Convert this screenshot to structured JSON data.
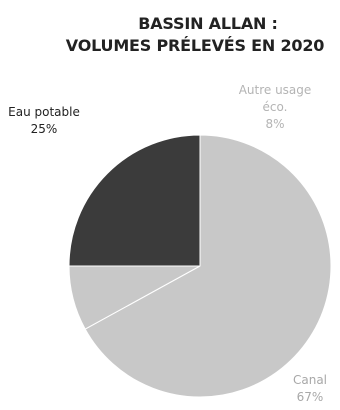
{
  "chart_data": {
    "type": "pie",
    "title_lines": [
      "BASSIN ALLAN :",
      "VOLUMES PRÉLEVÉS EN 2020"
    ],
    "slices": [
      {
        "label": "Eau potable",
        "value": 25,
        "value_label": "25%",
        "color": "#3b3b3b",
        "label_color": "#222222"
      },
      {
        "label": "Canal",
        "value": 67,
        "value_label": "67%",
        "color": "#c8c8c8",
        "label_color": "#a8a8a8"
      },
      {
        "label": "Autre usage éco.",
        "label_lines": [
          "Autre usage",
          "éco."
        ],
        "value": 8,
        "value_label": "8%",
        "color": "#c8c8c8",
        "label_color": "#b4b4b4"
      }
    ],
    "legend": "none",
    "grid": false
  }
}
